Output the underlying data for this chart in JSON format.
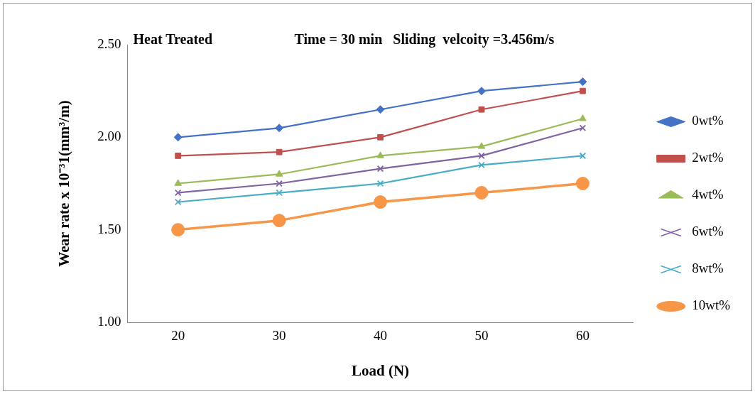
{
  "chart_data": {
    "type": "line",
    "xlabel": "Load (N)",
    "ylabel": "Wear rate x 10⁻³1(mm³/m)",
    "annotations": [
      "Heat Treated",
      "Time = 30 min   Sliding  velcoity =3.456m/s"
    ],
    "categories": [
      "20",
      "30",
      "40",
      "50",
      "60"
    ],
    "series": [
      {
        "name": "0wt%",
        "color": "#4472c4",
        "marker": "diamond",
        "values": [
          2.0,
          2.05,
          2.15,
          2.25,
          2.3
        ]
      },
      {
        "name": "2wt%",
        "color": "#c0504d",
        "marker": "square",
        "values": [
          1.9,
          1.92,
          2.0,
          2.15,
          2.25
        ]
      },
      {
        "name": "4wt%",
        "color": "#9bbb59",
        "marker": "triangle",
        "values": [
          1.75,
          1.8,
          1.9,
          1.95,
          2.1
        ]
      },
      {
        "name": "6wt%",
        "color": "#8064a2",
        "marker": "cross",
        "values": [
          1.7,
          1.75,
          1.83,
          1.9,
          2.05
        ]
      },
      {
        "name": "8wt%",
        "color": "#4bacc6",
        "marker": "cross",
        "values": [
          1.65,
          1.7,
          1.75,
          1.85,
          1.9
        ]
      },
      {
        "name": "10wt%",
        "color": "#f79646",
        "marker": "circle",
        "values": [
          1.5,
          1.55,
          1.65,
          1.7,
          1.75
        ]
      }
    ],
    "ylim": [
      1.0,
      2.5
    ],
    "yticks": [
      {
        "value": 1.0,
        "label": "1.00"
      },
      {
        "value": 1.5,
        "label": "1.50"
      },
      {
        "value": 2.0,
        "label": "2.00"
      },
      {
        "value": 2.5,
        "label": "2.50"
      }
    ],
    "grid": false,
    "legend": "right"
  }
}
